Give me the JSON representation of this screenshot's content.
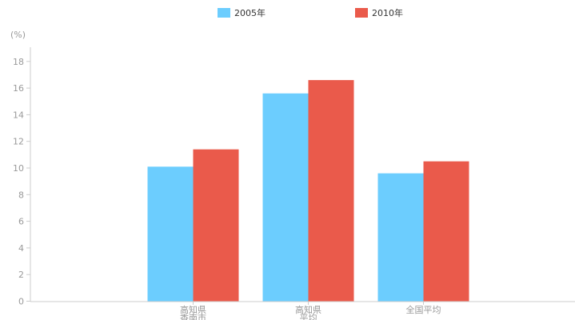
{
  "chart_data": {
    "type": "bar",
    "title": "",
    "xlabel": "",
    "ylabel": "(%)",
    "ylim": [
      0,
      19
    ],
    "yticks": [
      0,
      2,
      4,
      6,
      8,
      10,
      12,
      14,
      16,
      18
    ],
    "grid": false,
    "legend_position": "top",
    "categories": [
      [
        "高知県",
        "香南市"
      ],
      [
        "高知県",
        "平均"
      ],
      [
        "全国平均"
      ]
    ],
    "series": [
      {
        "name": "2005年",
        "color": "#6ccdfe",
        "values": [
          10.1,
          15.6,
          9.6
        ]
      },
      {
        "name": "2010年",
        "color": "#ea5a4b",
        "values": [
          11.4,
          16.6,
          10.5
        ]
      }
    ]
  }
}
